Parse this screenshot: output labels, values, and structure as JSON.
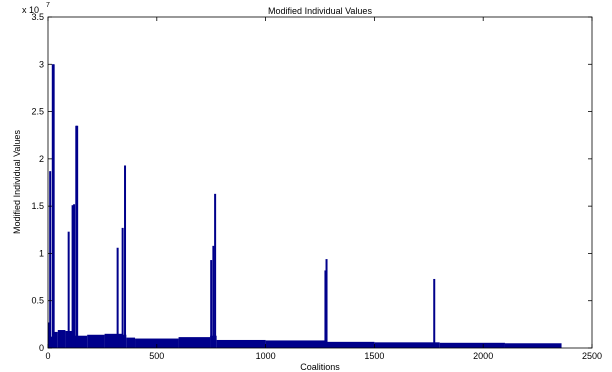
{
  "chart_data": {
    "type": "bar",
    "title": "Modified Individual Values",
    "xlabel": "Coalitions",
    "ylabel": "Modified Individual Values",
    "y_multiplier_base": "x 10",
    "y_multiplier_exp": "7",
    "xlim": [
      0,
      2500
    ],
    "ylim": [
      0,
      3.5
    ],
    "x_ticks": [
      0,
      500,
      1000,
      1500,
      2000,
      2500
    ],
    "y_ticks": [
      0,
      0.5,
      1,
      1.5,
      2,
      2.5,
      3,
      3.5
    ],
    "x_tick_labels": [
      "0",
      "500",
      "1000",
      "1500",
      "2000",
      "2500"
    ],
    "y_tick_labels": [
      "0",
      "0.5",
      "1",
      "1.5",
      "2",
      "2.5",
      "3",
      "3.5"
    ],
    "grid": false,
    "bar_color": "#00008B",
    "baseline_segments": [
      {
        "x_start": 0,
        "x_end": 10,
        "y": 0.27
      },
      {
        "x_start": 10,
        "x_end": 20,
        "y": 0.12
      },
      {
        "x_start": 20,
        "x_end": 45,
        "y": 0.17
      },
      {
        "x_start": 45,
        "x_end": 80,
        "y": 0.19
      },
      {
        "x_start": 80,
        "x_end": 120,
        "y": 0.18
      },
      {
        "x_start": 120,
        "x_end": 180,
        "y": 0.13
      },
      {
        "x_start": 180,
        "x_end": 260,
        "y": 0.14
      },
      {
        "x_start": 260,
        "x_end": 345,
        "y": 0.15
      },
      {
        "x_start": 345,
        "x_end": 360,
        "y": 0.14
      },
      {
        "x_start": 360,
        "x_end": 400,
        "y": 0.11
      },
      {
        "x_start": 400,
        "x_end": 600,
        "y": 0.1
      },
      {
        "x_start": 600,
        "x_end": 745,
        "y": 0.115
      },
      {
        "x_start": 745,
        "x_end": 775,
        "y": 0.13
      },
      {
        "x_start": 775,
        "x_end": 1000,
        "y": 0.085
      },
      {
        "x_start": 1000,
        "x_end": 1280,
        "y": 0.08
      },
      {
        "x_start": 1280,
        "x_end": 1500,
        "y": 0.065
      },
      {
        "x_start": 1500,
        "x_end": 1800,
        "y": 0.06
      },
      {
        "x_start": 1800,
        "x_end": 2100,
        "y": 0.055
      },
      {
        "x_start": 2100,
        "x_end": 2360,
        "y": 0.05
      }
    ],
    "spikes": [
      {
        "x": 10,
        "y": 1.87
      },
      {
        "x": 22,
        "y": 3.0
      },
      {
        "x": 26,
        "y": 3.0
      },
      {
        "x": 95,
        "y": 1.23
      },
      {
        "x": 113,
        "y": 1.51
      },
      {
        "x": 120,
        "y": 1.52
      },
      {
        "x": 130,
        "y": 2.35
      },
      {
        "x": 134,
        "y": 2.35
      },
      {
        "x": 320,
        "y": 1.06
      },
      {
        "x": 343,
        "y": 1.27
      },
      {
        "x": 354,
        "y": 1.93
      },
      {
        "x": 750,
        "y": 0.93
      },
      {
        "x": 760,
        "y": 1.08
      },
      {
        "x": 768,
        "y": 1.63
      },
      {
        "x": 1275,
        "y": 0.82
      },
      {
        "x": 1280,
        "y": 0.94
      },
      {
        "x": 1775,
        "y": 0.73
      }
    ]
  }
}
